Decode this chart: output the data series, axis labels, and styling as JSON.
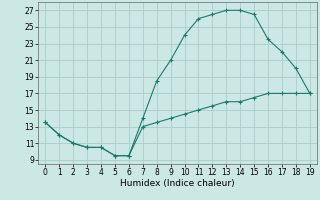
{
  "title": "",
  "xlabel": "Humidex (Indice chaleur)",
  "bg_color": "#cce8e4",
  "grid_color": "#aacccc",
  "line_color": "#1a7a6a",
  "curve1_x": [
    0,
    1,
    2,
    3,
    4,
    5,
    6,
    7,
    8,
    9,
    10,
    11,
    12,
    13,
    14,
    15,
    16,
    17,
    18,
    19
  ],
  "curve1_y": [
    13.5,
    12.0,
    11.0,
    10.5,
    10.5,
    9.5,
    9.5,
    14.0,
    18.5,
    21.0,
    24.0,
    26.0,
    26.5,
    27.0,
    27.0,
    26.5,
    23.5,
    22.0,
    20.0,
    17.0
  ],
  "curve2_x": [
    0,
    1,
    2,
    3,
    4,
    5,
    6,
    7,
    8,
    9,
    10,
    11,
    12,
    13,
    14,
    15,
    16,
    17,
    18,
    19
  ],
  "curve2_y": [
    13.5,
    12.0,
    11.0,
    10.5,
    10.5,
    9.5,
    9.5,
    13.0,
    13.5,
    14.0,
    14.5,
    15.0,
    15.5,
    16.0,
    16.0,
    16.5,
    17.0,
    17.0,
    17.0,
    17.0
  ],
  "xlim": [
    -0.5,
    19.5
  ],
  "ylim": [
    8.5,
    28
  ],
  "yticks": [
    9,
    11,
    13,
    15,
    17,
    19,
    21,
    23,
    25,
    27
  ],
  "xticks": [
    0,
    1,
    2,
    3,
    4,
    5,
    6,
    7,
    8,
    9,
    10,
    11,
    12,
    13,
    14,
    15,
    16,
    17,
    18,
    19
  ],
  "tick_fontsize": 5.5,
  "label_fontsize": 6.5
}
